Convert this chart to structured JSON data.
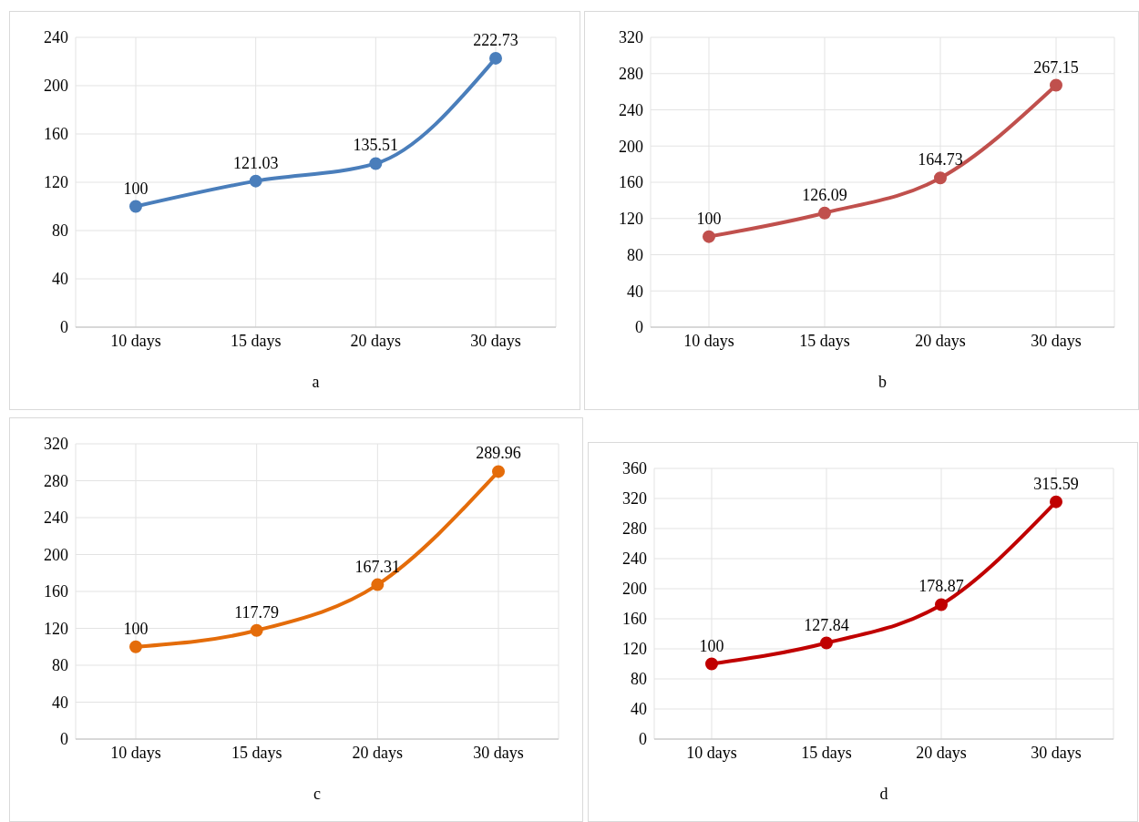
{
  "chart_data": [
    {
      "type": "line",
      "xlabel": "a",
      "categories": [
        "10 days",
        "15 days",
        "20 days",
        "30 days"
      ],
      "series": [
        {
          "color": "#4a7ebb",
          "values": [
            100,
            121.03,
            135.51,
            222.73
          ]
        }
      ],
      "ylim": [
        0,
        240
      ],
      "yticks": [
        0,
        40,
        80,
        120,
        160,
        200,
        240
      ],
      "grid": true,
      "marker": "circle",
      "data_labels": true,
      "legend": false
    },
    {
      "type": "line",
      "xlabel": "b",
      "categories": [
        "10 days",
        "15 days",
        "20 days",
        "30 days"
      ],
      "series": [
        {
          "color": "#c0504d",
          "values": [
            100,
            126.09,
            164.73,
            267.15
          ]
        }
      ],
      "ylim": [
        0,
        320
      ],
      "yticks": [
        0,
        40,
        80,
        120,
        160,
        200,
        240,
        280,
        320
      ],
      "grid": true,
      "marker": "circle",
      "data_labels": true,
      "legend": false
    },
    {
      "type": "line",
      "xlabel": "c",
      "categories": [
        "10 days",
        "15 days",
        "20 days",
        "30 days"
      ],
      "series": [
        {
          "color": "#e46c0a",
          "values": [
            100,
            117.79,
            167.31,
            289.96
          ]
        }
      ],
      "ylim": [
        0,
        320
      ],
      "yticks": [
        0,
        40,
        80,
        120,
        160,
        200,
        240,
        280,
        320
      ],
      "grid": true,
      "marker": "circle",
      "data_labels": true,
      "legend": false
    },
    {
      "type": "line",
      "xlabel": "d",
      "categories": [
        "10 days",
        "15 days",
        "20 days",
        "30 days"
      ],
      "series": [
        {
          "color": "#c00000",
          "values": [
            100,
            127.84,
            178.87,
            315.59
          ]
        }
      ],
      "ylim": [
        0,
        360
      ],
      "yticks": [
        0,
        40,
        80,
        120,
        160,
        200,
        240,
        280,
        320,
        360
      ],
      "grid": true,
      "marker": "circle",
      "data_labels": true,
      "legend": false
    }
  ]
}
